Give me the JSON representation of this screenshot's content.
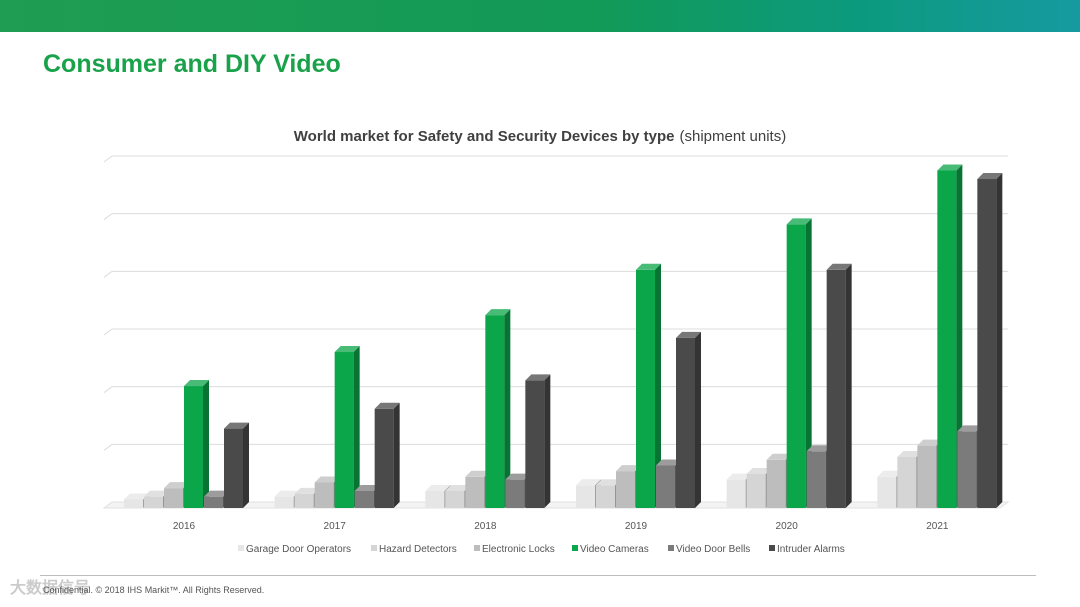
{
  "slide": {
    "title": "Consumer and DIY Video",
    "footer": "Confidential. © 2018 IHS Markit™. All Rights Reserved.",
    "watermark": "大数据信号"
  },
  "colors": {
    "brand_green": "#1aa24b"
  },
  "chart_data": {
    "type": "bar",
    "title": "World market for Safety and Security Devices by type",
    "subtitle": "(shipment units)",
    "xlabel": "",
    "ylabel": "",
    "categories": [
      "2016",
      "2017",
      "2018",
      "2019",
      "2020",
      "2021"
    ],
    "series": [
      {
        "name": "Garage Door Operators",
        "color": "#e6e6e6",
        "values": [
          0.15,
          0.2,
          0.3,
          0.4,
          0.5,
          0.55
        ]
      },
      {
        "name": "Hazard Detectors",
        "color": "#d5d5d5",
        "values": [
          0.2,
          0.25,
          0.3,
          0.4,
          0.6,
          0.9
        ]
      },
      {
        "name": "Electronic Locks",
        "color": "#bdbdbd",
        "values": [
          0.35,
          0.45,
          0.55,
          0.65,
          0.85,
          1.1
        ]
      },
      {
        "name": "Video Cameras",
        "color": "#0ba64a",
        "values": [
          2.15,
          2.75,
          3.4,
          4.2,
          5.0,
          5.95
        ]
      },
      {
        "name": "Video Door Bells",
        "color": "#7b7b7b",
        "values": [
          0.2,
          0.3,
          0.5,
          0.75,
          1.0,
          1.35
        ]
      },
      {
        "name": "Intruder Alarms",
        "color": "#4a4a4a",
        "values": [
          1.4,
          1.75,
          2.25,
          3.0,
          4.2,
          5.8
        ]
      }
    ],
    "ylim": [
      0,
      6.1
    ],
    "grid": true,
    "legend_position": "bottom"
  }
}
